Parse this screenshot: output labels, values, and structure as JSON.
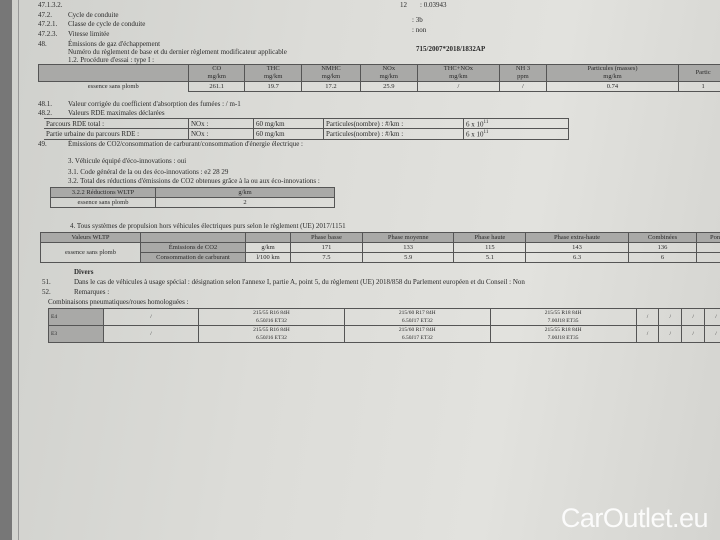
{
  "header": {
    "ref": "47.1.3.2.",
    "top_right_code": "12",
    "top_right_value": ": 0.03943"
  },
  "items": [
    {
      "num": "47.2.",
      "label": "Cycle de conduite",
      "value": ""
    },
    {
      "num": "47.2.1.",
      "label": "Classe de cycle de conduite",
      "value": ": 3b"
    },
    {
      "num": "47.2.3.",
      "label": "Vitesse limitée",
      "value": ": non"
    },
    {
      "num": "48.",
      "label": "Émissions de gaz d'échappement",
      "value": ""
    }
  ],
  "regulation": {
    "label": "Numéro du règlement de base et du dernier règlement modificateur applicable",
    "value": "715/2007*2018/1832AP"
  },
  "emissions": {
    "title": "1.2. Procédure d'essai : type I :",
    "headers": [
      [
        "CO",
        "mg/km"
      ],
      [
        "THC",
        "mg/km"
      ],
      [
        "NMHC",
        "mg/km"
      ],
      [
        "NOx",
        "mg/km"
      ],
      [
        "THC+NOx",
        "mg/km"
      ],
      [
        "NH 3",
        "ppm"
      ],
      [
        "Particules (masses)",
        "mg/km"
      ],
      [
        "Partic",
        ""
      ]
    ],
    "row_label": "essence sans plomb",
    "values": [
      "261.1",
      "19.7",
      "17.2",
      "25.9",
      "/",
      "/",
      "0.74",
      "1"
    ]
  },
  "s481": {
    "num": "48.1.",
    "label": "Valeur corrigée du coefficient d'absorption des fumées : / m-1"
  },
  "s482": {
    "num": "48.2.",
    "label": "Valeurs RDE maximales déclarées",
    "rows": [
      {
        "label": "Parcours RDE total :",
        "nox": "NOx :",
        "nox_val": "60 mg/km",
        "part": "Particules(nombre) : #/km :",
        "part_val": "6 x 10",
        "exp": "11"
      },
      {
        "label": "Partie urbaine du parcours RDE :",
        "nox": "NOx :",
        "nox_val": "60 mg/km",
        "part": "Particules(nombre) : #/km :",
        "part_val": "6 x 10",
        "exp": "11"
      }
    ]
  },
  "s49": {
    "num": "49.",
    "label": "Émissions de CO2/consommation de carburant/consommation d'énergie électrique :"
  },
  "eco": {
    "l3": "3. Véhicule équipé d'éco-innovations : oui",
    "l31": "3.1. Code général de la ou des éco-innovations : e2 28 29",
    "l32": "3.2. Total des réductions d'émissions de CO2 obtenues grâce à la ou aux éco-innovations :",
    "table": {
      "h1": "3.2.2 Réductions WLTP",
      "h2": "g/km",
      "row": "essence sans plomb",
      "val": "2"
    }
  },
  "wltp": {
    "title": "4. Tous systèmes de propulsion hors véhicules électriques purs selon le règlement (UE) 2017/1151",
    "corner": "Valeurs WLTP",
    "fuel": "essence sans plomb",
    "phases": [
      "Phase basse",
      "Phase moyenne",
      "Phase haute",
      "Phase extra-haute",
      "Combinées",
      "Pondé"
    ],
    "rows": [
      {
        "label": "Émissions de CO2",
        "unit": "g/km",
        "values": [
          "171",
          "133",
          "115",
          "143",
          "136",
          ""
        ]
      },
      {
        "label": "Consommation de carburant",
        "unit": "l/100 km",
        "values": [
          "7.5",
          "5.9",
          "5.1",
          "6.3",
          "6",
          ""
        ]
      }
    ]
  },
  "divers": {
    "title": "Divers",
    "n51": "51.",
    "t51": "Dans le cas de véhicules à usage spécial : désignation selon l'annexe I, partie A, point 5, du règlement (UE) 2018/858 du Parlement européen et du Conseil : Non",
    "n52": "52.",
    "t52": "Remarques :",
    "tyres_label": "Combinaisons pneumatiques/roues homologuées :",
    "rows": [
      {
        "code": "E4",
        "t1": [
          "215/55 R16 84H",
          "6.50J16 ET32"
        ],
        "t2": [
          "215/60 R17 84H",
          "6.50J17 ET32"
        ],
        "t3": [
          "215/55 R18 84H",
          "7.00J18 ET35"
        ]
      },
      {
        "code": "E3",
        "t1": [
          "215/55 R16 84H",
          "6.50J16 ET32"
        ],
        "t2": [
          "215/60 R17 84H",
          "6.50J17 ET32"
        ],
        "t3": [
          "215/55 R18 84H",
          "7.00J18 ET35"
        ]
      }
    ]
  },
  "watermark": "CarOutlet.eu"
}
